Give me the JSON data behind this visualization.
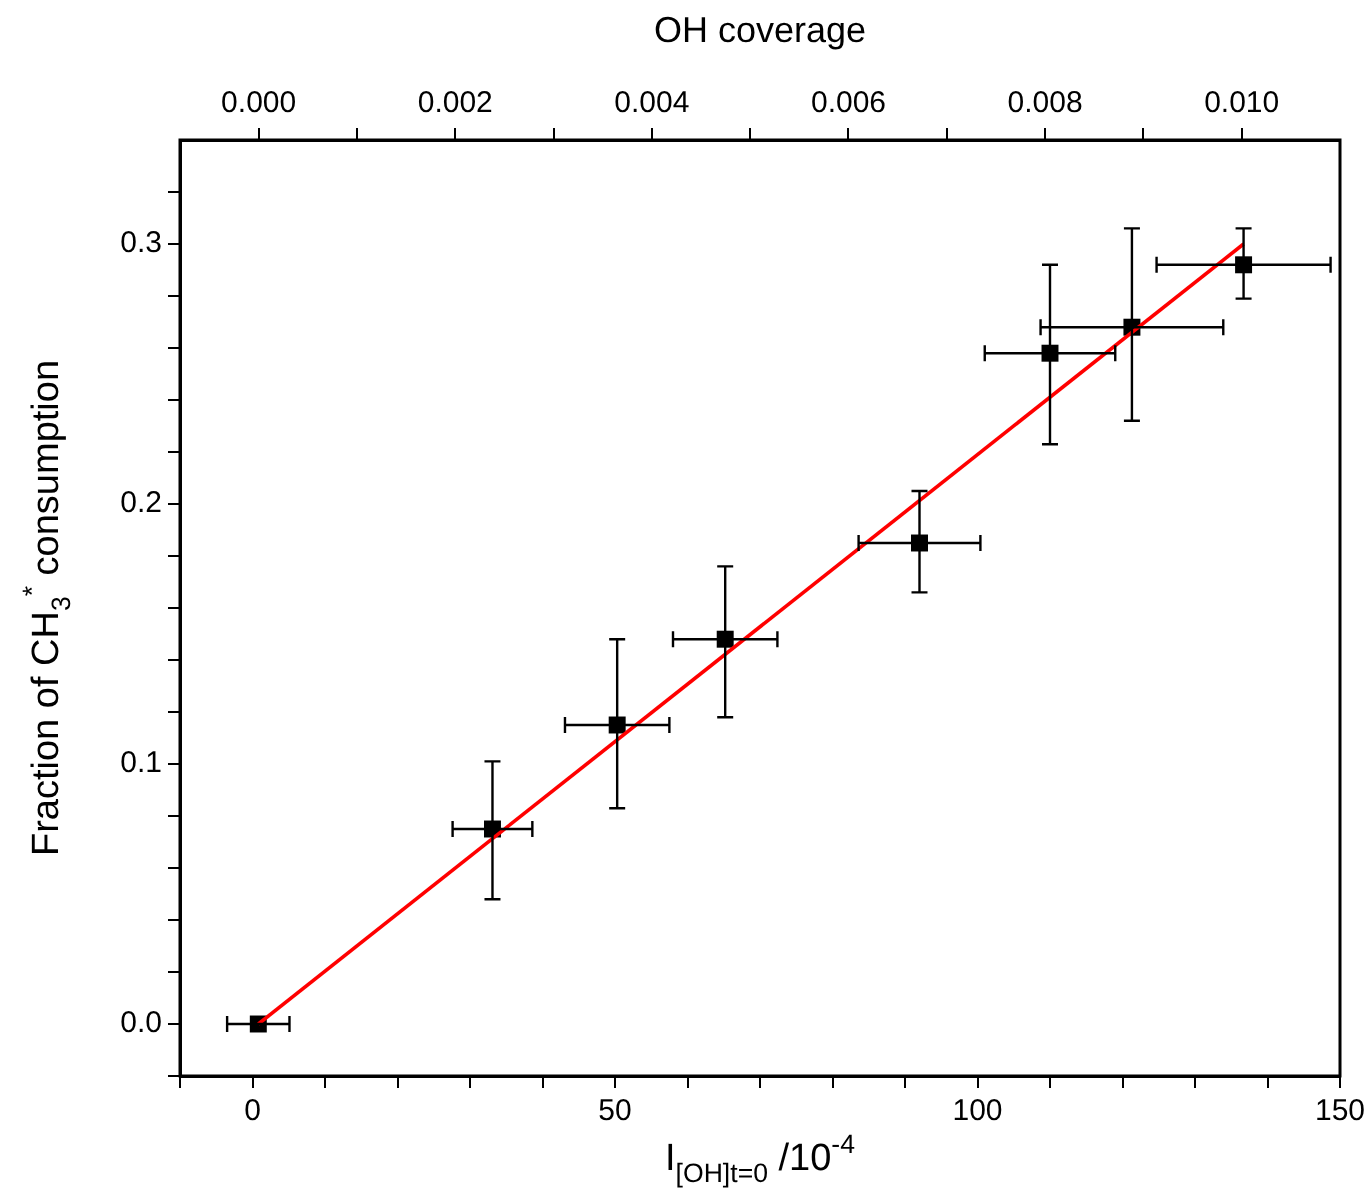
{
  "chart_data": {
    "type": "scatter",
    "xlabel": "I$_{[OH]t=0}$ /10$^{-4}$",
    "ylabel": "Fraction of CH$_{3}$$^{*}$ consumption",
    "x2label": "OH coverage",
    "xlim": [
      -10,
      150
    ],
    "xticks": [
      {
        "value": -10,
        "label": null
      },
      0,
      {
        "value": 10,
        "label": null
      },
      {
        "value": 20,
        "label": null
      },
      {
        "value": 30,
        "label": null
      },
      {
        "value": 40,
        "label": null
      },
      50,
      {
        "value": 60,
        "label": null
      },
      {
        "value": 70,
        "label": null
      },
      {
        "value": 80,
        "label": null
      },
      {
        "value": 90,
        "label": null
      },
      100,
      {
        "value": 110,
        "label": null
      },
      {
        "value": 120,
        "label": null
      },
      {
        "value": 130,
        "label": null
      },
      {
        "value": 140,
        "label": null
      },
      150
    ],
    "ylim": [
      -0.02,
      0.34
    ],
    "yticks": [
      {
        "value": -0.02,
        "label": null
      },
      {
        "value": 0,
        "label": "0.0"
      },
      {
        "value": 0.02,
        "label": null
      },
      {
        "value": 0.04,
        "label": null
      },
      {
        "value": 0.06,
        "label": null
      },
      {
        "value": 0.08,
        "label": null
      },
      {
        "value": 0.1,
        "label": "0.1"
      },
      {
        "value": 0.12,
        "label": null
      },
      {
        "value": 0.14,
        "label": null
      },
      {
        "value": 0.16,
        "label": null
      },
      {
        "value": 0.18,
        "label": null
      },
      {
        "value": 0.2,
        "label": "0.2"
      },
      {
        "value": 0.22,
        "label": null
      },
      {
        "value": 0.24,
        "label": null
      },
      {
        "value": 0.26,
        "label": null
      },
      {
        "value": 0.28,
        "label": null
      },
      {
        "value": 0.3,
        "label": "0.3"
      },
      {
        "value": 0.32,
        "label": null
      }
    ],
    "x2lim": [
      -0.0008,
      0.011
    ],
    "x2ticks": [
      {
        "value": 0,
        "label": "0.000"
      },
      {
        "value": 0.001,
        "label": null
      },
      {
        "value": 0.002,
        "label": "0.002"
      },
      {
        "value": 0.003,
        "label": null
      },
      {
        "value": 0.004,
        "label": "0.004"
      },
      {
        "value": 0.005,
        "label": null
      },
      {
        "value": 0.006,
        "label": "0.006"
      },
      {
        "value": 0.007,
        "label": null
      },
      {
        "value": 0.008,
        "label": "0.008"
      },
      {
        "value": 0.009,
        "label": null
      },
      {
        "value": 0.01,
        "label": "0.010"
      }
    ],
    "grid": false,
    "legend": false,
    "series": [
      {
        "type": "line",
        "marker": "none",
        "color": "#ff0000",
        "x": [
          0.8,
          136.7
        ],
        "values": [
          0,
          0.3
        ]
      },
      {
        "marker": "square",
        "color": "#000000",
        "x": [
          0.8,
          33.1,
          50.3,
          65.2,
          92.0,
          110.0,
          121.3,
          136.7
        ],
        "values": [
          0.0,
          0.075,
          0.115,
          0.148,
          0.185,
          0.258,
          0.268,
          0.292
        ],
        "errors": [
          null,
          [
            0.048,
            0.101
          ],
          [
            0.083,
            0.148
          ],
          [
            0.118,
            0.176
          ],
          [
            0.166,
            0.205
          ],
          [
            0.223,
            0.292
          ],
          [
            0.232,
            0.306
          ],
          [
            0.279,
            0.306
          ]
        ],
        "xerrors": [
          4.3,
          5.5,
          7.2,
          7.2,
          8.4,
          9.0,
          12.6,
          12.0
        ]
      }
    ]
  }
}
